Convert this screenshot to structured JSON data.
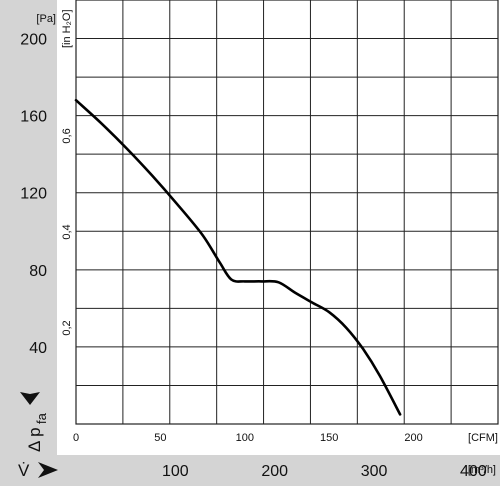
{
  "chart_data": {
    "type": "line",
    "y_primary": {
      "unit": "[Pa]",
      "range": [
        0,
        220
      ],
      "ticks": [
        "40",
        "80",
        "120",
        "160",
        "200"
      ]
    },
    "y_secondary": {
      "unit": "[in H₂O]",
      "ticks": [
        "0,2",
        "0,4",
        "0,6"
      ]
    },
    "x_primary": {
      "unit": "[CFM]",
      "range": [
        0,
        250
      ],
      "ticks": [
        "0",
        "50",
        "100",
        "150",
        "200"
      ]
    },
    "x_secondary": {
      "unit": "[m³/h]",
      "ticks": [
        "100",
        "200",
        "300",
        "400"
      ]
    },
    "y_label": "Δ p",
    "y_label_sub": "fa",
    "x_label": "V̇",
    "grid": true,
    "series": [
      {
        "x": [
          0,
          15,
          30,
          45,
          60,
          75,
          85,
          92,
          100,
          110,
          120,
          130,
          140,
          150,
          160,
          170,
          180,
          192
        ],
        "y": [
          168,
          156,
          143,
          129,
          114,
          98,
          84,
          75,
          74,
          74,
          73.5,
          68,
          63,
          58,
          50,
          39,
          25,
          5
        ]
      }
    ]
  }
}
